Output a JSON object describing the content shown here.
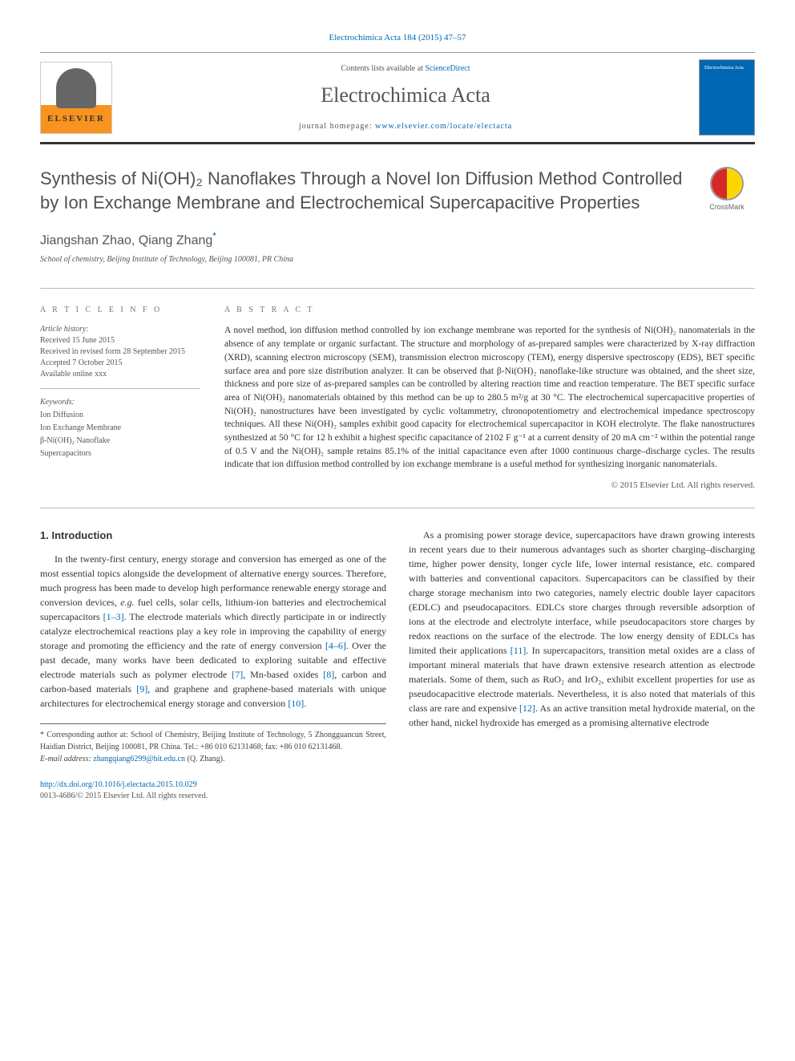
{
  "citation": "Electrochimica Acta 184 (2015) 47–57",
  "header": {
    "contents_prefix": "Contents lists available at ",
    "contents_link": "ScienceDirect",
    "journal_name": "Electrochimica Acta",
    "homepage_prefix": "journal homepage: ",
    "homepage_link": "www.elsevier.com/locate/electacta",
    "elsevier": "ELSEVIER",
    "cover_text": "Electrochimica Acta"
  },
  "title": "Synthesis of Ni(OH)₂ Nanoflakes Through a Novel Ion Diffusion Method Controlled by Ion Exchange Membrane and Electrochemical Supercapacitive Properties",
  "crossmark": "CrossMark",
  "authors": "Jiangshan Zhao, Qiang Zhang",
  "author_star": "*",
  "affiliation": "School of chemistry, Beijing Institute of Technology, Beijing 100081, PR China",
  "article_info_head": "A R T I C L E  I N F O",
  "abstract_head": "A B S T R A C T",
  "history": {
    "label": "Article history:",
    "received": "Received 15 June 2015",
    "revised": "Received in revised form 28 September 2015",
    "accepted": "Accepted 7 October 2015",
    "online": "Available online xxx"
  },
  "keywords": {
    "label": "Keywords:",
    "items": [
      "Ion Diffusion",
      "Ion Exchange Membrane",
      "β-Ni(OH)₂ Nanoflake",
      "Supercapacitors"
    ]
  },
  "abstract": "A novel method, ion diffusion method controlled by ion exchange membrane was reported for the synthesis of Ni(OH)₂ nanomaterials in the absence of any template or organic surfactant. The structure and morphology of as-prepared samples were characterized by X-ray diffraction (XRD), scanning electron microscopy (SEM), transmission electron microscopy (TEM), energy dispersive spectroscopy (EDS), BET specific surface area and pore size distribution analyzer. It can be observed that β-Ni(OH)₂ nanoflake-like structure was obtained, and the sheet size, thickness and pore size of as-prepared samples can be controlled by altering reaction time and reaction temperature. The BET specific surface area of Ni(OH)₂ nanomaterials obtained by this method can be up to 280.5 m²/g at 30 °C. The electrochemical supercapacitive properties of Ni(OH)₂ nanostructures have been investigated by cyclic voltammetry, chronopotentiometry and electrochemical impedance spectroscopy techniques. All these Ni(OH)₂ samples exhibit good capacity for electrochemical supercapacitor in KOH electrolyte. The flake nanostructures synthesized at 50 °C for 12 h exhibit a highest specific capacitance of 2102 F g⁻¹ at a current density of 20 mA cm⁻² within the potential range of 0.5 V and the Ni(OH)₂ sample retains 85.1% of the initial capacitance even after 1000 continuous charge–discharge cycles. The results indicate that ion diffusion method controlled by ion exchange membrane is a useful method for synthesizing inorganic nanomaterials.",
  "copyright": "© 2015 Elsevier Ltd. All rights reserved.",
  "section1_head": "1. Introduction",
  "para1_a": "In the twenty-first century, energy storage and conversion has emerged as one of the most essential topics alongside the development of alternative energy sources. Therefore, much progress has been made to develop high performance renewable energy storage and conversion devices, ",
  "para1_eg": "e.g.",
  "para1_b": " fuel cells, solar cells, lithium-ion batteries and electrochemical supercapacitors ",
  "ref13": "[1–3]",
  "para1_c": ". The electrode materials which directly participate in or indirectly catalyze electrochemical reactions play a key role in improving the capability of energy storage and promoting the efficiency and the rate of energy conversion ",
  "ref46": "[4–6]",
  "para1_d": ". Over the past decade, many works have been dedicated to exploring suitable and effective electrode materials such as polymer electrode ",
  "ref7": "[7]",
  "para1_e": ", Mn-based oxides ",
  "ref8": "[8]",
  "para1_f": ", carbon and carbon-based materials ",
  "ref9": "[9]",
  "para1_g": ", and graphene and graphene-based materials with unique architectures for electrochemical energy storage and conversion ",
  "ref10": "[10]",
  "para1_h": ".",
  "para2_a": "As a promising power storage device, supercapacitors have drawn growing interests in recent years due to their numerous advantages such as shorter charging–discharging time, higher power density, longer cycle life, lower internal resistance, etc. compared with batteries and conventional capacitors. Supercapacitors can be classified by their charge storage mechanism into two categories, namely electric double layer capacitors (EDLC) and pseudocapacitors. EDLCs store charges through reversible adsorption of ions at the electrode and electrolyte interface, while pseudocapacitors store charges by redox reactions on the surface of the electrode. The low energy density of EDLCs has limited their applications ",
  "ref11": "[11]",
  "para2_b": ". In supercapacitors, transition metal oxides are a class of important mineral materials that have drawn extensive research attention as electrode materials. Some of them, such as RuO₂ and IrO₂, exhibit excellent properties for use as pseudocapacitive electrode materials. Nevertheless, it is also noted that materials of this class are rare and expensive ",
  "ref12": "[12]",
  "para2_c": ". As an active transition metal hydroxide material, on the other hand, nickel hydroxide has emerged as a promising alternative electrode",
  "footnote": {
    "corr_prefix": "* Corresponding author at: School of Chemistry, Beijing Institute of Technology, 5 Zhongguancun Street, Haidian District, Beijing 100081, PR China. Tel.: +86 010 62131468; fax: +86 010 62131468.",
    "email_label": "E-mail address: ",
    "email": "zhangqiang6299@bit.edu.cn",
    "email_suffix": " (Q. Zhang)."
  },
  "footer": {
    "doi": "http://dx.doi.org/10.1016/j.electacta.2015.10.029",
    "issn_line": "0013-4686/© 2015 Elsevier Ltd. All rights reserved."
  }
}
